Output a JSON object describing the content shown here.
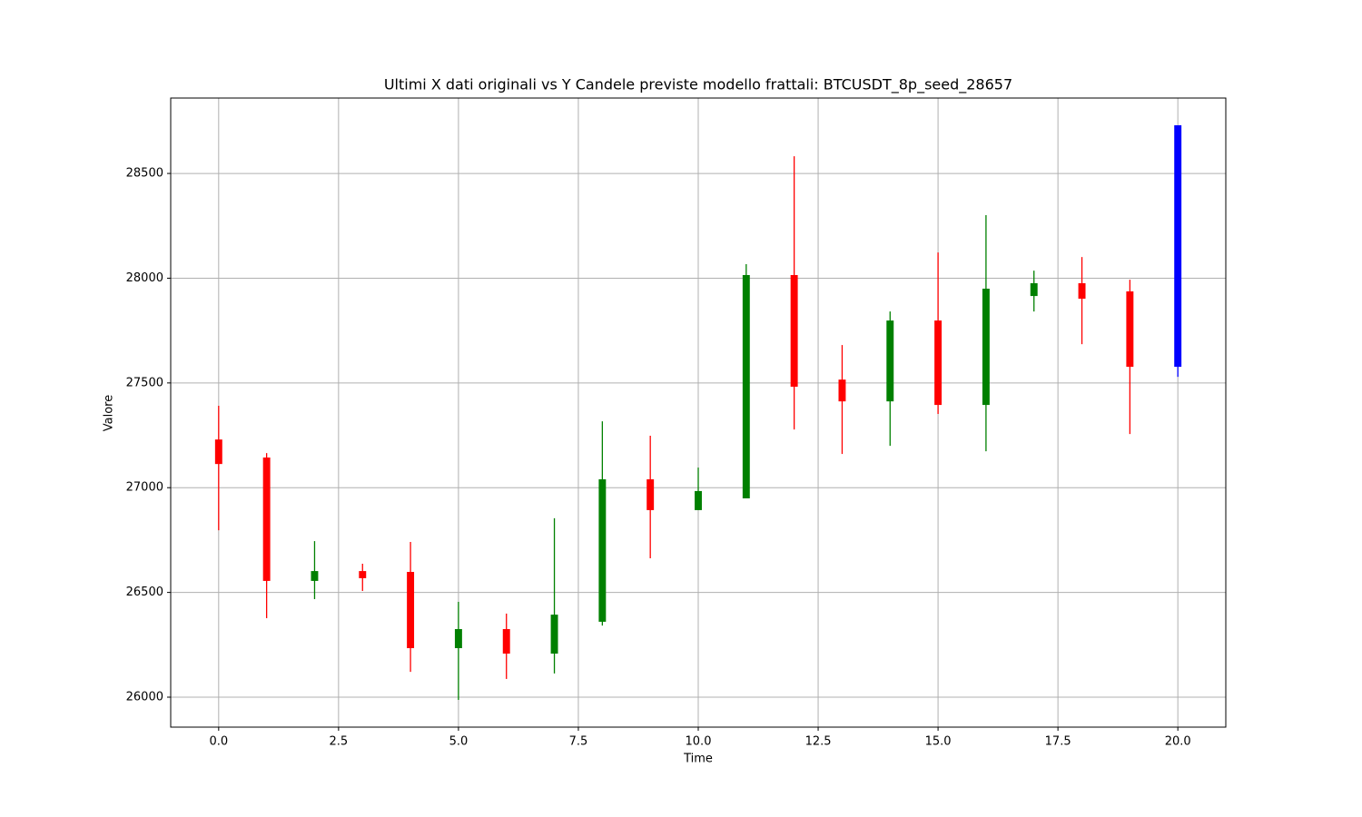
{
  "chart_data": {
    "type": "candlestick",
    "title": "Ultimi X dati originali vs Y Candele previste modello frattali: BTCUSDT_8p_seed_28657",
    "x_label": "Time",
    "y_label": "Valore",
    "x": [
      0,
      1,
      2,
      3,
      4,
      5,
      6,
      7,
      8,
      9,
      10,
      11,
      12,
      13,
      14,
      15,
      16,
      17,
      18,
      19,
      20
    ],
    "open": [
      27230,
      27144,
      26555,
      26602,
      26598,
      26234,
      26325,
      26208,
      26360,
      27040,
      26893,
      26949,
      28015,
      27516,
      27412,
      27798,
      27395,
      27915,
      27976,
      27937,
      27577
    ],
    "high": [
      27391,
      27165,
      26745,
      26637,
      26741,
      26455,
      26399,
      26854,
      27317,
      27248,
      27096,
      28067,
      28582,
      27681,
      27841,
      28123,
      28301,
      28036,
      28101,
      27993,
      28730
    ],
    "low": [
      26797,
      26377,
      26468,
      26507,
      26121,
      25987,
      26087,
      26113,
      26342,
      26663,
      26893,
      26949,
      27278,
      27161,
      27200,
      27352,
      27174,
      27841,
      27685,
      27256,
      27529
    ],
    "close": [
      27113,
      26555,
      26602,
      26568,
      26234,
      26325,
      26208,
      26394,
      27040,
      26893,
      26984,
      28015,
      27482,
      27412,
      27798,
      27395,
      27950,
      27976,
      27902,
      27577,
      28730
    ],
    "colors": [
      "red",
      "red",
      "green",
      "red",
      "red",
      "green",
      "red",
      "green",
      "green",
      "red",
      "green",
      "green",
      "red",
      "red",
      "green",
      "red",
      "green",
      "green",
      "red",
      "red",
      "blue"
    ],
    "xlim": [
      -1,
      21
    ],
    "ylim": [
      25857,
      28860
    ],
    "xticks": [
      {
        "value": 0,
        "label": "0.0"
      },
      2.5,
      {
        "value": 5,
        "label": "5.0"
      },
      7.5,
      {
        "value": 10,
        "label": "10.0"
      },
      12.5,
      {
        "value": 15,
        "label": "15.0"
      },
      17.5,
      {
        "value": 20,
        "label": "20.0"
      }
    ],
    "yticks": [
      26000,
      26500,
      27000,
      27500,
      28000,
      28500
    ],
    "grid": true
  }
}
